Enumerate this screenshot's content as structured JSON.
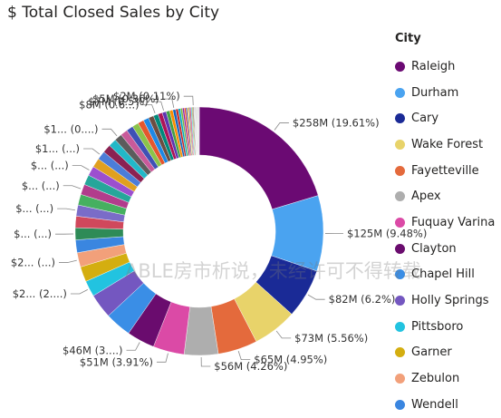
{
  "title": "$ Total Closed Sales by City",
  "watermark": "ABLE房市析说，未经许可不得转载",
  "legend": {
    "title": "City",
    "items": [
      {
        "name": "Raleigh",
        "color": "#6B0A73"
      },
      {
        "name": "Durham",
        "color": "#4AA3F0"
      },
      {
        "name": "Cary",
        "color": "#1A2A96"
      },
      {
        "name": "Wake Forest",
        "color": "#E8D36A"
      },
      {
        "name": "Fayetteville",
        "color": "#E46A3C"
      },
      {
        "name": "Apex",
        "color": "#AEAEAE"
      },
      {
        "name": "Fuquay Varina",
        "color": "#DB4AA6"
      },
      {
        "name": "Clayton",
        "color": "#6A0C6E"
      },
      {
        "name": "Chapel Hill",
        "color": "#3A8EE6"
      },
      {
        "name": "Holly Springs",
        "color": "#7457C0"
      },
      {
        "name": "Pittsboro",
        "color": "#22C3E0"
      },
      {
        "name": "Garner",
        "color": "#D4AE10"
      },
      {
        "name": "Zebulon",
        "color": "#F2A07A"
      },
      {
        "name": "Wendell",
        "color": "#3A86E0"
      }
    ]
  },
  "chart_data": {
    "type": "pie",
    "donut": true,
    "title": "$ Total Closed Sales by City",
    "legend_title": "City",
    "legend_position": "right",
    "slices": [
      {
        "label": "Raleigh",
        "percent": 19.61,
        "data_label": "$258M (19.61%)",
        "color": "#6B0A73"
      },
      {
        "label": "Durham",
        "percent": 9.48,
        "data_label": "$125M (9.48%)",
        "color": "#4AA3F0"
      },
      {
        "label": "Cary",
        "percent": 6.2,
        "data_label": "$82M (6.2%)",
        "color": "#1A2A96"
      },
      {
        "label": "Wake Forest",
        "percent": 5.56,
        "data_label": "$73M (5.56%)",
        "color": "#E8D36A"
      },
      {
        "label": "Fayetteville",
        "percent": 4.95,
        "data_label": "$65M (4.95%)",
        "color": "#E46A3C"
      },
      {
        "label": "Apex",
        "percent": 4.26,
        "data_label": "$56M (4.26%)",
        "color": "#AEAEAE"
      },
      {
        "label": "Fuquay Varina",
        "percent": 3.91,
        "data_label": "$51M (3.91%)",
        "color": "#DB4AA6"
      },
      {
        "label": "Clayton",
        "percent": 3.5,
        "data_label": "$46M (3....)",
        "color": "#6A0C6E"
      },
      {
        "label": "Chapel Hill",
        "percent": 3.3,
        "data_label": "",
        "color": "#3A8EE6"
      },
      {
        "label": "Holly Springs",
        "percent": 3.1,
        "data_label": "",
        "color": "#7457C0"
      },
      {
        "label": "Pittsboro",
        "percent": 2.0,
        "data_label": "$2... (2....)",
        "color": "#22C3E0"
      },
      {
        "label": "Garner",
        "percent": 1.9,
        "data_label": "",
        "color": "#D4AE10"
      },
      {
        "label": "Zebulon",
        "percent": 1.8,
        "data_label": "$2... (...)",
        "color": "#F2A07A"
      },
      {
        "label": "Wendell",
        "percent": 1.6,
        "data_label": "",
        "color": "#3A86E0"
      },
      {
        "label": "",
        "percent": 1.5,
        "data_label": "$... (...)",
        "color": "#2E8B57"
      },
      {
        "label": "",
        "percent": 1.45,
        "data_label": "",
        "color": "#D0485C"
      },
      {
        "label": "",
        "percent": 1.4,
        "data_label": "$... (...)",
        "color": "#7A6CC8"
      },
      {
        "label": "",
        "percent": 1.35,
        "data_label": "",
        "color": "#46B060"
      },
      {
        "label": "",
        "percent": 1.3,
        "data_label": "$... (...)",
        "color": "#B23C8C"
      },
      {
        "label": "",
        "percent": 1.25,
        "data_label": "",
        "color": "#26A69A"
      },
      {
        "label": "",
        "percent": 1.2,
        "data_label": "$... (...)",
        "color": "#9C4FCF"
      },
      {
        "label": "",
        "percent": 1.15,
        "data_label": "",
        "color": "#E0A020"
      },
      {
        "label": "",
        "percent": 1.1,
        "data_label": "$1... (...)",
        "color": "#4C7DD8"
      },
      {
        "label": "",
        "percent": 1.05,
        "data_label": "",
        "color": "#8B2252"
      },
      {
        "label": "",
        "percent": 1.0,
        "data_label": "",
        "color": "#22B8C8"
      },
      {
        "label": "",
        "percent": 0.95,
        "data_label": "$1... (0....)",
        "color": "#5C5C5C"
      },
      {
        "label": "",
        "percent": 0.9,
        "data_label": "",
        "color": "#C85A9A"
      },
      {
        "label": "",
        "percent": 0.85,
        "data_label": "",
        "color": "#3F51B5"
      },
      {
        "label": "",
        "percent": 0.8,
        "data_label": "",
        "color": "#8BC34A"
      },
      {
        "label": "",
        "percent": 0.75,
        "data_label": "",
        "color": "#E4572E"
      },
      {
        "label": "",
        "percent": 0.7,
        "data_label": "",
        "color": "#1E88E5"
      },
      {
        "label": "",
        "percent": 0.65,
        "data_label": "",
        "color": "#6D4C41"
      },
      {
        "label": "",
        "percent": 0.6,
        "data_label": "$8M (0.6...)",
        "color": "#00897B"
      },
      {
        "label": "",
        "percent": 0.55,
        "data_label": "",
        "color": "#AD1457"
      },
      {
        "label": "",
        "percent": 0.5,
        "data_label": "$7M (0.5%)",
        "color": "#5E35B1"
      },
      {
        "label": "",
        "percent": 0.45,
        "data_label": "",
        "color": "#43A047"
      },
      {
        "label": "",
        "percent": 0.4,
        "data_label": "",
        "color": "#FB8C00"
      },
      {
        "label": "",
        "percent": 0.36,
        "data_label": "$5M (0.36%)",
        "color": "#1565C0"
      },
      {
        "label": "",
        "percent": 0.32,
        "data_label": "",
        "color": "#C62828"
      },
      {
        "label": "",
        "percent": 0.28,
        "data_label": "",
        "color": "#00ACC1"
      },
      {
        "label": "",
        "percent": 0.25,
        "data_label": "",
        "color": "#7CB342"
      },
      {
        "label": "",
        "percent": 0.22,
        "data_label": "",
        "color": "#8E24AA"
      },
      {
        "label": "",
        "percent": 0.2,
        "data_label": "",
        "color": "#F4511E"
      },
      {
        "label": "",
        "percent": 0.18,
        "data_label": "",
        "color": "#3949AB"
      },
      {
        "label": "",
        "percent": 0.16,
        "data_label": "",
        "color": "#FDD835"
      },
      {
        "label": "",
        "percent": 0.15,
        "data_label": "",
        "color": "#6D6D6D"
      },
      {
        "label": "",
        "percent": 0.14,
        "data_label": "",
        "color": "#D81B60"
      },
      {
        "label": "",
        "percent": 0.13,
        "data_label": "",
        "color": "#26C6DA"
      },
      {
        "label": "",
        "percent": 0.12,
        "data_label": "",
        "color": "#9E9D24"
      },
      {
        "label": "",
        "percent": 0.11,
        "data_label": "$2M (0.11%)",
        "color": "#5D4037"
      },
      {
        "label": "",
        "percent": 0.1,
        "data_label": "",
        "color": "#BDBDBD"
      },
      {
        "label": "",
        "percent": 0.1,
        "data_label": "",
        "color": "#C9C9C9"
      },
      {
        "label": "",
        "percent": 0.09,
        "data_label": "",
        "color": "#A8A8A8"
      },
      {
        "label": "",
        "percent": 0.09,
        "data_label": "",
        "color": "#D2D2D2"
      },
      {
        "label": "",
        "percent": 0.08,
        "data_label": "",
        "color": "#B5B5B5"
      },
      {
        "label": "",
        "percent": 0.08,
        "data_label": "",
        "color": "#9A9A9A"
      },
      {
        "label": "",
        "percent": 0.08,
        "data_label": "",
        "color": "#CFCFCF"
      },
      {
        "label": "",
        "percent": 0.07,
        "data_label": "",
        "color": "#BBBBBB"
      }
    ]
  }
}
